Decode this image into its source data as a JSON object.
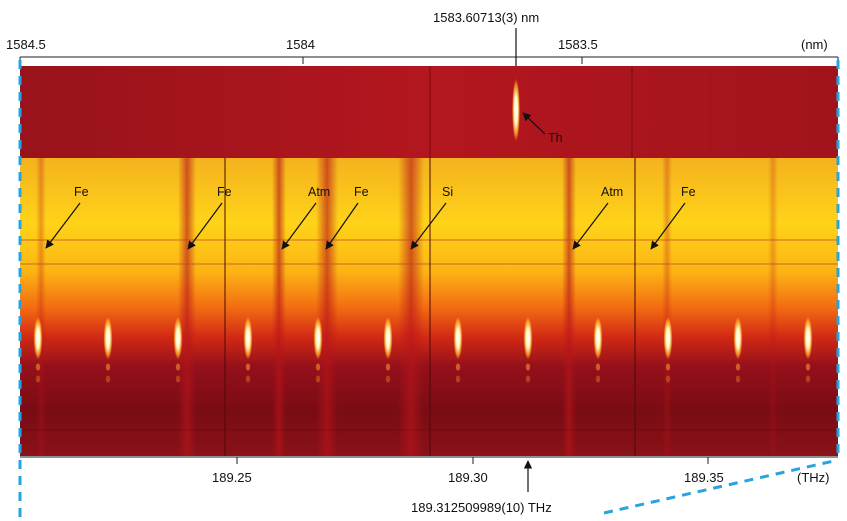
{
  "top_axis": {
    "unit": "(nm)",
    "ticks": [
      {
        "label": "1584.5"
      },
      {
        "label": "1584"
      },
      {
        "label": "1583.5"
      }
    ]
  },
  "bottom_axis": {
    "unit": "(THz)",
    "ticks": [
      {
        "label": "189.25"
      },
      {
        "label": "189.30"
      },
      {
        "label": "189.35"
      }
    ]
  },
  "annotations": {
    "top_marker": "1583.60713(3) nm",
    "bottom_marker": "189.312509989(10) THz",
    "thorium": "Th"
  },
  "line_labels": [
    "Fe",
    "Fe",
    "Atm",
    "Fe",
    "Si",
    "Atm",
    "Fe"
  ],
  "colors": {
    "upper_panel": "#b0151e",
    "bright_yellow": "#ffd21a",
    "orange": "#f06a10",
    "dark_red": "#6e0a12",
    "dashed_guide": "#29a3dc"
  }
}
